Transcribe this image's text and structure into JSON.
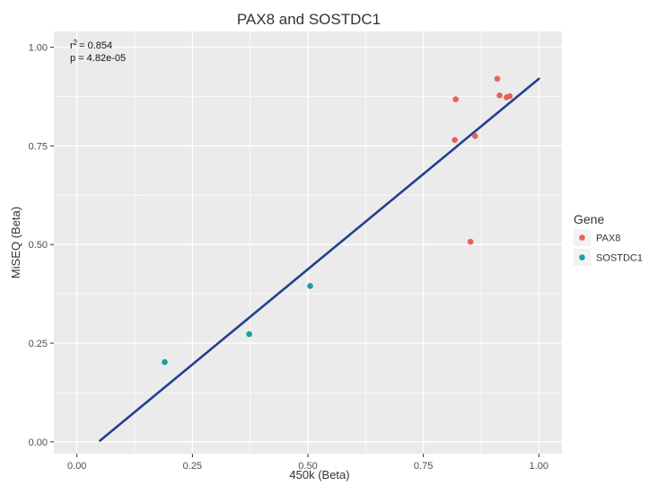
{
  "chart_data": {
    "type": "scatter",
    "title": "PAX8 and SOSTDC1",
    "xlabel": "450k (Beta)",
    "ylabel": "MiSEQ (Beta)",
    "xlim": [
      -0.05,
      1.05
    ],
    "ylim": [
      -0.03,
      1.04
    ],
    "x_ticks": [
      0.0,
      0.25,
      0.5,
      0.75,
      1.0
    ],
    "x_tick_labels": [
      "0.00",
      "0.25",
      "0.50",
      "0.75",
      "1.00"
    ],
    "y_ticks": [
      0.0,
      0.25,
      0.5,
      0.75,
      1.0
    ],
    "y_tick_labels": [
      "0.00",
      "0.25",
      "0.50",
      "0.75",
      "1.00"
    ],
    "grid": true,
    "legend": {
      "title": "Gene",
      "position": "right"
    },
    "annotation": {
      "r2_label": "r",
      "r2_value": "= 0.854",
      "p_text": "p = 4.82e-05"
    },
    "series": [
      {
        "name": "PAX8",
        "color": "#e8625a",
        "points": [
          [
            0.91,
            0.92
          ],
          [
            0.915,
            0.878
          ],
          [
            0.93,
            0.873
          ],
          [
            0.937,
            0.876
          ],
          [
            0.82,
            0.868
          ],
          [
            0.818,
            0.765
          ],
          [
            0.862,
            0.775
          ],
          [
            0.852,
            0.507
          ]
        ]
      },
      {
        "name": "SOSTDC1",
        "color": "#1b9da6",
        "points": [
          [
            0.19,
            0.202
          ],
          [
            0.373,
            0.273
          ],
          [
            0.505,
            0.395
          ]
        ]
      }
    ],
    "regression_line": {
      "color": "#24408e",
      "x": [
        0.05,
        1.0
      ],
      "y": [
        0.003,
        0.92
      ]
    }
  }
}
